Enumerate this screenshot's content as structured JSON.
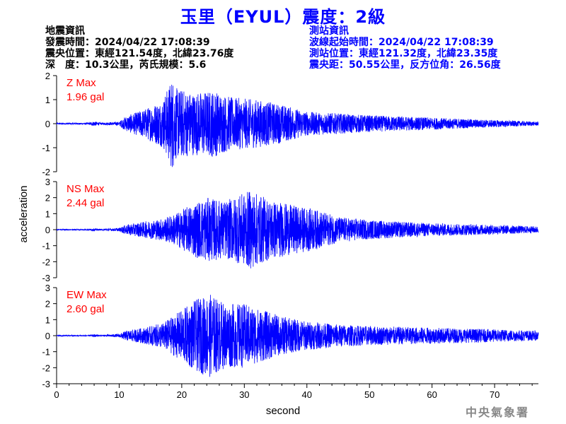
{
  "title": "玉里（EYUL）震度：2級",
  "quake_info": {
    "heading": "地震資訊",
    "origin_time": "發震時間：2024/04/22 17:08:39",
    "epicenter": "震央位置：東經121.54度，北緯23.76度",
    "depth_magnitude": "深　度：10.3公里，芮氏規模：5.6"
  },
  "station_info": {
    "heading": "測站資訊",
    "wave_start": "波線起始時間：2024/04/22 17:08:39",
    "station_location": "測站位置：東經121.32度，北緯23.35度",
    "distance_azimuth": "震央距：50.55公里，反方位角：26.56度"
  },
  "watermark": "中央氣象署",
  "colors": {
    "trace": "#0000ff",
    "max_label": "#ff0000",
    "info_right": "#0000ff",
    "axis": "#000000"
  },
  "chart_data": {
    "type": "line",
    "xlabel": "second",
    "ylabel": "acceleration",
    "xlim": [
      0,
      77
    ],
    "x_ticks": [
      0,
      10,
      20,
      30,
      40,
      50,
      60,
      70
    ],
    "grid": false,
    "panels": [
      {
        "name": "Z",
        "max_label": "Z Max",
        "max_value": "1.96 gal",
        "ylim": [
          -2,
          2
        ],
        "y_ticks": [
          -2,
          -1,
          0,
          1,
          2
        ],
        "envelope": {
          "x": [
            0,
            5,
            6,
            7,
            10,
            11,
            14,
            17,
            18.5,
            19,
            22,
            25,
            28,
            32,
            36,
            40,
            50,
            60,
            70,
            77
          ],
          "amp": [
            0.03,
            0.03,
            0.1,
            0.04,
            0.08,
            0.3,
            0.6,
            1.0,
            1.96,
            1.5,
            1.3,
            1.4,
            1.1,
            1.0,
            0.8,
            0.5,
            0.35,
            0.25,
            0.15,
            0.08
          ]
        }
      },
      {
        "name": "NS",
        "max_label": "NS Max",
        "max_value": "2.44 gal",
        "ylim": [
          -3,
          3
        ],
        "y_ticks": [
          -3,
          -2,
          -1,
          0,
          1,
          2,
          3
        ],
        "envelope": {
          "x": [
            0,
            5,
            6,
            7,
            10,
            11,
            14,
            17,
            19,
            22,
            24,
            27,
            31,
            34,
            38,
            41,
            45,
            50,
            60,
            70,
            77
          ],
          "amp": [
            0.03,
            0.03,
            0.08,
            0.04,
            0.1,
            0.3,
            0.5,
            0.7,
            1.0,
            1.7,
            2.0,
            1.8,
            2.44,
            1.9,
            1.5,
            1.3,
            0.8,
            0.6,
            0.4,
            0.3,
            0.2
          ]
        }
      },
      {
        "name": "EW",
        "max_label": "EW Max",
        "max_value": "2.60 gal",
        "ylim": [
          -3,
          3
        ],
        "y_ticks": [
          -3,
          -2,
          -1,
          0,
          1,
          2,
          3
        ],
        "envelope": {
          "x": [
            0,
            5,
            6,
            7,
            10,
            11,
            14,
            17,
            20,
            22,
            24.5,
            27,
            30,
            33,
            36,
            40,
            45,
            50,
            60,
            70,
            77
          ],
          "amp": [
            0.03,
            0.03,
            0.08,
            0.04,
            0.1,
            0.3,
            0.5,
            0.8,
            1.6,
            2.2,
            2.6,
            2.0,
            2.0,
            1.6,
            1.2,
            0.9,
            0.7,
            0.6,
            0.5,
            0.4,
            0.3
          ]
        }
      }
    ]
  }
}
